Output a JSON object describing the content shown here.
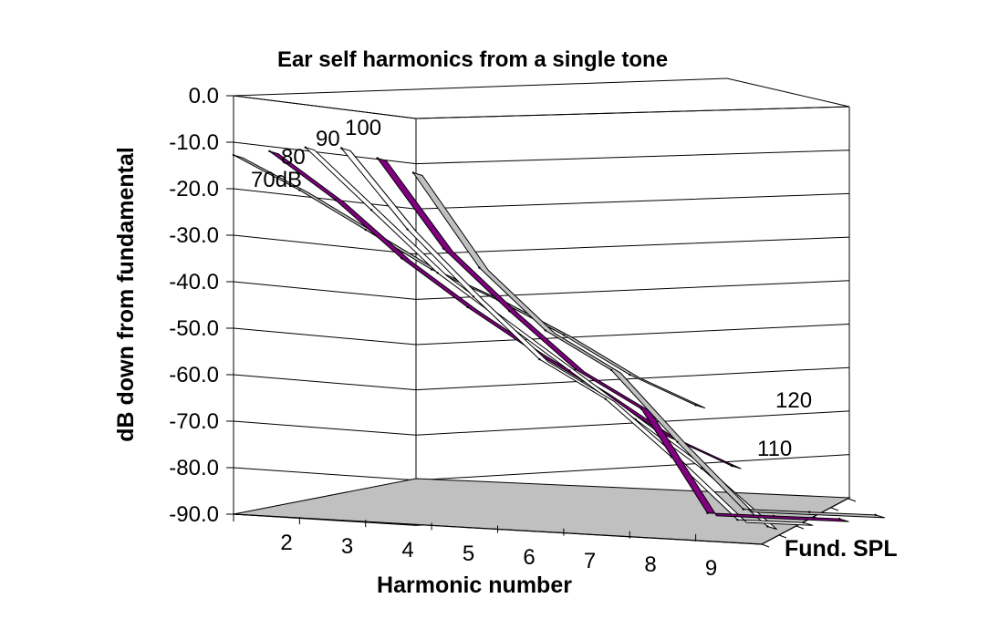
{
  "chart_data": {
    "type": "line",
    "subtype": "3d-ribbon",
    "title": "Ear self harmonics from a single tone",
    "xlabel": "Harmonic number",
    "ylabel": "dB down from fundamental",
    "zlabel": "Fund. SPL",
    "categories": [
      2,
      3,
      4,
      5,
      6,
      7,
      8,
      9
    ],
    "y_ticks": [
      "0.0",
      "-10.0",
      "-20.0",
      "-30.0",
      "-40.0",
      "-50.0",
      "-60.0",
      "-70.0",
      "-80.0",
      "-90.0"
    ],
    "ylim": [
      -90,
      0
    ],
    "grid": true,
    "series": [
      {
        "name": "70dB",
        "label": "70dB",
        "color": "#c0c0c0",
        "values": [
          -20,
          -40,
          -53,
          -61,
          -76,
          -90,
          -90,
          -90
        ]
      },
      {
        "name": "80",
        "label": "80",
        "color": "#800080",
        "values": [
          -16,
          -35,
          -48,
          -60,
          -68,
          -90,
          -90,
          -90
        ]
      },
      {
        "name": "90",
        "label": "90",
        "color": "#ffffff",
        "values": [
          -13,
          -30,
          -44,
          -57,
          -65,
          -77,
          -90,
          -90
        ]
      },
      {
        "name": "100",
        "label": "100",
        "color": "#ffffff",
        "values": [
          -12,
          -25,
          -38,
          -48,
          -58,
          -68,
          -78,
          -90
        ]
      },
      {
        "name": "110",
        "label": "110",
        "color": "#800080",
        "values": [
          -12,
          -22,
          -34,
          -44,
          -53,
          -61,
          -70,
          -76
        ]
      },
      {
        "name": "120",
        "label": "120",
        "color": "#c0c0c0",
        "values": [
          -12,
          -19,
          -27,
          -35,
          -41,
          -48,
          -56,
          -62
        ]
      }
    ],
    "colors": {
      "floor": "#c0c0c0",
      "grid": "#000000",
      "ribbon_edge": "#000000"
    }
  }
}
